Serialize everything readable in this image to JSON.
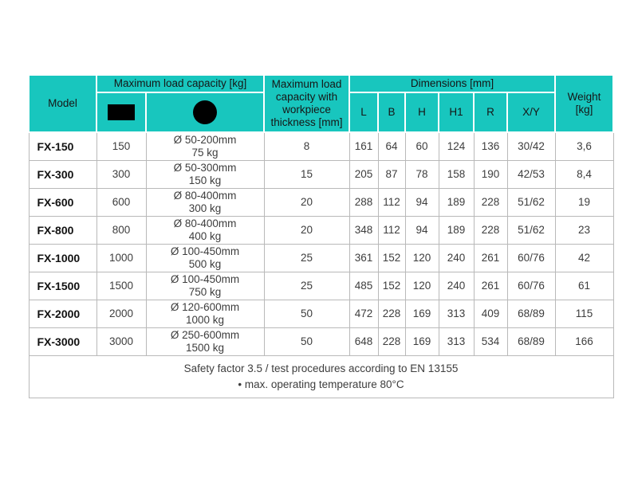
{
  "colors": {
    "header_bg": "#18C6BE",
    "border_gray": "#b9b9b9",
    "icon_black": "#000000"
  },
  "icons": {
    "rectangle": "rectangle-solid-black-icon",
    "circle": "circle-solid-black-icon"
  },
  "table": {
    "header": {
      "model_label": "Model",
      "max_load_label": "Maximum load capacity [kg]",
      "workpiece_label": "Maximum load capacity with workpiece thickness [mm]",
      "dimensions_label": "Dimensions [mm]",
      "dim_columns": [
        "L",
        "B",
        "H",
        "H1",
        "R",
        "X/Y"
      ],
      "weight_label": "Weight [kg]"
    },
    "rows": [
      {
        "model": "FX-150",
        "load_rect": "150",
        "load_circle_line1": "Ø 50-200mm",
        "load_circle_line2": "75 kg",
        "workpiece": "8",
        "L": "161",
        "B": "64",
        "H": "60",
        "H1": "124",
        "R": "136",
        "XY": "30/42",
        "weight": "3,6"
      },
      {
        "model": "FX-300",
        "load_rect": "300",
        "load_circle_line1": "Ø 50-300mm",
        "load_circle_line2": "150 kg",
        "workpiece": "15",
        "L": "205",
        "B": "87",
        "H": "78",
        "H1": "158",
        "R": "190",
        "XY": "42/53",
        "weight": "8,4"
      },
      {
        "model": "FX-600",
        "load_rect": "600",
        "load_circle_line1": "Ø 80-400mm",
        "load_circle_line2": "300 kg",
        "workpiece": "20",
        "L": "288",
        "B": "112",
        "H": "94",
        "H1": "189",
        "R": "228",
        "XY": "51/62",
        "weight": "19"
      },
      {
        "model": "FX-800",
        "load_rect": "800",
        "load_circle_line1": "Ø 80-400mm",
        "load_circle_line2": "400 kg",
        "workpiece": "20",
        "L": "348",
        "B": "112",
        "H": "94",
        "H1": "189",
        "R": "228",
        "XY": "51/62",
        "weight": "23"
      },
      {
        "model": "FX-1000",
        "load_rect": "1000",
        "load_circle_line1": "Ø 100-450mm",
        "load_circle_line2": "500 kg",
        "workpiece": "25",
        "L": "361",
        "B": "152",
        "H": "120",
        "H1": "240",
        "R": "261",
        "XY": "60/76",
        "weight": "42"
      },
      {
        "model": "FX-1500",
        "load_rect": "1500",
        "load_circle_line1": "Ø 100-450mm",
        "load_circle_line2": "750 kg",
        "workpiece": "25",
        "L": "485",
        "B": "152",
        "H": "120",
        "H1": "240",
        "R": "261",
        "XY": "60/76",
        "weight": "61"
      },
      {
        "model": "FX-2000",
        "load_rect": "2000",
        "load_circle_line1": "Ø 120-600mm",
        "load_circle_line2": "1000 kg",
        "workpiece": "50",
        "L": "472",
        "B": "228",
        "H": "169",
        "H1": "313",
        "R": "409",
        "XY": "68/89",
        "weight": "115"
      },
      {
        "model": "FX-3000",
        "load_rect": "3000",
        "load_circle_line1": "Ø 250-600mm",
        "load_circle_line2": "1500 kg",
        "workpiece": "50",
        "L": "648",
        "B": "228",
        "H": "169",
        "H1": "313",
        "R": "534",
        "XY": "68/89",
        "weight": "166"
      }
    ],
    "footer": {
      "line1": "Safety factor 3.5 / test procedures according to EN 13155",
      "line2": "• max. operating temperature 80°C"
    }
  }
}
